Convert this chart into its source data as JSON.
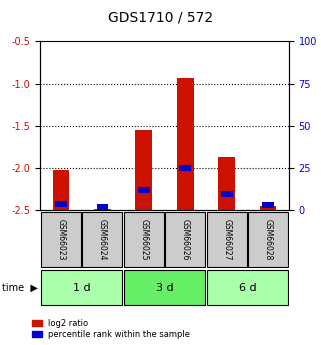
{
  "title": "GDS1710 / 572",
  "samples": [
    "GSM66023",
    "GSM66024",
    "GSM66025",
    "GSM66026",
    "GSM66027",
    "GSM66028"
  ],
  "log2_ratio": [
    -2.02,
    -2.48,
    -1.55,
    -0.93,
    -1.87,
    -2.45
  ],
  "percentile_rank": [
    4,
    2,
    12,
    25,
    10,
    3
  ],
  "time_groups": [
    {
      "label": "1 d",
      "indices": [
        0,
        1
      ]
    },
    {
      "label": "3 d",
      "indices": [
        2,
        3
      ]
    },
    {
      "label": "6 d",
      "indices": [
        4,
        5
      ]
    }
  ],
  "ylim_left": [
    -2.5,
    -0.5
  ],
  "ylim_right": [
    0,
    100
  ],
  "bar_width": 0.4,
  "red_color": "#cc1100",
  "blue_color": "#0000cc",
  "grid_color": "#000000",
  "bg_plot": "#ffffff",
  "bg_sample_label": "#cccccc",
  "bg_time_light": "#aaffaa",
  "bg_time_medium": "#66ee66",
  "left_tick_color": "#cc1100",
  "right_tick_color": "#0000cc",
  "legend_red_label": "log2 ratio",
  "legend_blue_label": "percentile rank within the sample",
  "time_label": "time"
}
